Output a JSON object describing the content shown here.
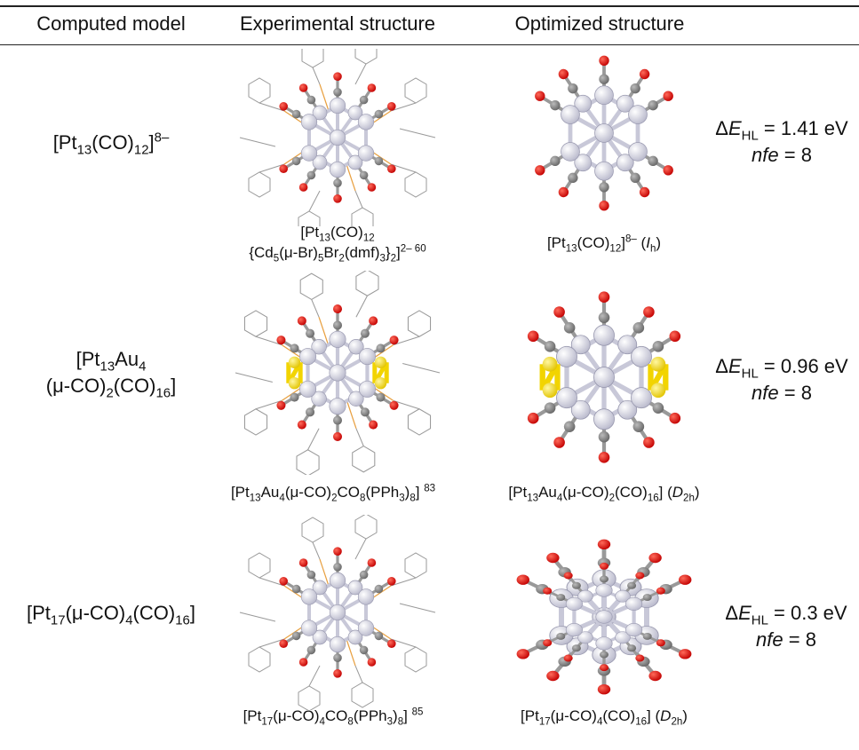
{
  "header": [
    "Computed model",
    "Experimental structure",
    "Optimized structure"
  ],
  "table": {
    "rows": [
      {
        "model": [
          [
            {
              "text": "[Pt"
            },
            {
              "text": "13",
              "style": "sub"
            },
            {
              "text": "(CO)"
            },
            {
              "text": "12",
              "style": "sub"
            },
            {
              "text": "]"
            },
            {
              "text": "8–",
              "style": "sup"
            }
          ]
        ],
        "experimental_caption": [
          [
            {
              "text": "[Pt"
            },
            {
              "text": "13",
              "style": "sub"
            },
            {
              "text": "(CO)"
            },
            {
              "text": "12",
              "style": "sub"
            }
          ],
          [
            {
              "text": "{Cd"
            },
            {
              "text": "5",
              "style": "sub"
            },
            {
              "text": "(μ-Br)"
            },
            {
              "text": "5",
              "style": "sub"
            },
            {
              "text": "Br"
            },
            {
              "text": "2",
              "style": "sub"
            },
            {
              "text": "(dmf)"
            },
            {
              "text": "3",
              "style": "sub"
            },
            {
              "text": "}"
            },
            {
              "text": "2",
              "style": "sub"
            },
            {
              "text": "]"
            },
            {
              "text": "2– 60",
              "style": "sup"
            }
          ]
        ],
        "optimized_caption": [
          [
            {
              "text": "[Pt"
            },
            {
              "text": "13",
              "style": "sub"
            },
            {
              "text": "(CO)"
            },
            {
              "text": "12",
              "style": "sub"
            },
            {
              "text": "]"
            },
            {
              "text": "8–",
              "style": "sup"
            },
            {
              "text": " ("
            },
            {
              "text": "I",
              "style": "italic"
            },
            {
              "text": "h",
              "style": "sub"
            },
            {
              "text": ")"
            }
          ]
        ],
        "energy": [
          [
            {
              "text": "Δ"
            },
            {
              "text": "E",
              "style": "italic"
            },
            {
              "text": "HL",
              "style": "sub"
            },
            {
              "text": " = 1.41 eV"
            }
          ],
          [
            {
              "text": "nfe",
              "style": "italic"
            },
            {
              "text": " = 8"
            }
          ]
        ]
      },
      {
        "model": [
          [
            {
              "text": "[Pt"
            },
            {
              "text": "13",
              "style": "sub"
            },
            {
              "text": "Au"
            },
            {
              "text": "4",
              "style": "sub"
            }
          ],
          [
            {
              "text": "(μ-CO)"
            },
            {
              "text": "2",
              "style": "sub"
            },
            {
              "text": "(CO)"
            },
            {
              "text": "16",
              "style": "sub"
            },
            {
              "text": "]"
            }
          ]
        ],
        "experimental_caption": [
          [
            {
              "text": "[Pt"
            },
            {
              "text": "13",
              "style": "sub"
            },
            {
              "text": "Au"
            },
            {
              "text": "4",
              "style": "sub"
            },
            {
              "text": "(μ-CO)"
            },
            {
              "text": "2",
              "style": "sub"
            },
            {
              "text": "CO"
            },
            {
              "text": "8",
              "style": "sub"
            },
            {
              "text": "(PPh"
            },
            {
              "text": "3",
              "style": "sub"
            },
            {
              "text": ")"
            },
            {
              "text": "8",
              "style": "sub"
            },
            {
              "text": "] "
            },
            {
              "text": "83",
              "style": "sup"
            }
          ]
        ],
        "optimized_caption": [
          [
            {
              "text": "[Pt"
            },
            {
              "text": "13",
              "style": "sub"
            },
            {
              "text": "Au"
            },
            {
              "text": "4",
              "style": "sub"
            },
            {
              "text": "(μ-CO)"
            },
            {
              "text": "2",
              "style": "sub"
            },
            {
              "text": "(CO)"
            },
            {
              "text": "16",
              "style": "sub"
            },
            {
              "text": "] ("
            },
            {
              "text": "D",
              "style": "italic"
            },
            {
              "text": "2h",
              "style": "sub"
            },
            {
              "text": ")"
            }
          ]
        ],
        "energy": [
          [
            {
              "text": "Δ"
            },
            {
              "text": "E",
              "style": "italic"
            },
            {
              "text": "HL",
              "style": "sub"
            },
            {
              "text": " = 0.96 eV"
            }
          ],
          [
            {
              "text": "nfe",
              "style": "italic"
            },
            {
              "text": " = 8"
            }
          ]
        ]
      },
      {
        "model": [
          [
            {
              "text": "[Pt"
            },
            {
              "text": "17",
              "style": "sub"
            },
            {
              "text": "(μ-CO)"
            },
            {
              "text": "4",
              "style": "sub"
            },
            {
              "text": "(CO)"
            },
            {
              "text": "16",
              "style": "sub"
            },
            {
              "text": "]"
            }
          ]
        ],
        "experimental_caption": [
          [
            {
              "text": "[Pt"
            },
            {
              "text": "17",
              "style": "sub"
            },
            {
              "text": "(μ-CO)"
            },
            {
              "text": "4",
              "style": "sub"
            },
            {
              "text": "CO"
            },
            {
              "text": "8",
              "style": "sub"
            },
            {
              "text": "(PPh"
            },
            {
              "text": "3",
              "style": "sub"
            },
            {
              "text": ")"
            },
            {
              "text": "8",
              "style": "sub"
            },
            {
              "text": "] "
            },
            {
              "text": "85",
              "style": "sup"
            }
          ]
        ],
        "optimized_caption": [
          [
            {
              "text": "[Pt"
            },
            {
              "text": "17",
              "style": "sub"
            },
            {
              "text": "(μ-CO)"
            },
            {
              "text": "4",
              "style": "sub"
            },
            {
              "text": "(CO)"
            },
            {
              "text": "16",
              "style": "sub"
            },
            {
              "text": "] ("
            },
            {
              "text": "D",
              "style": "italic"
            },
            {
              "text": "2h",
              "style": "sub"
            },
            {
              "text": ")"
            }
          ]
        ],
        "energy": [
          [
            {
              "text": "Δ"
            },
            {
              "text": "E",
              "style": "italic"
            },
            {
              "text": "HL",
              "style": "sub"
            },
            {
              "text": " = 0.3 eV"
            }
          ],
          [
            {
              "text": "nfe",
              "style": "italic"
            },
            {
              "text": " = 8"
            }
          ]
        ]
      }
    ]
  }
}
